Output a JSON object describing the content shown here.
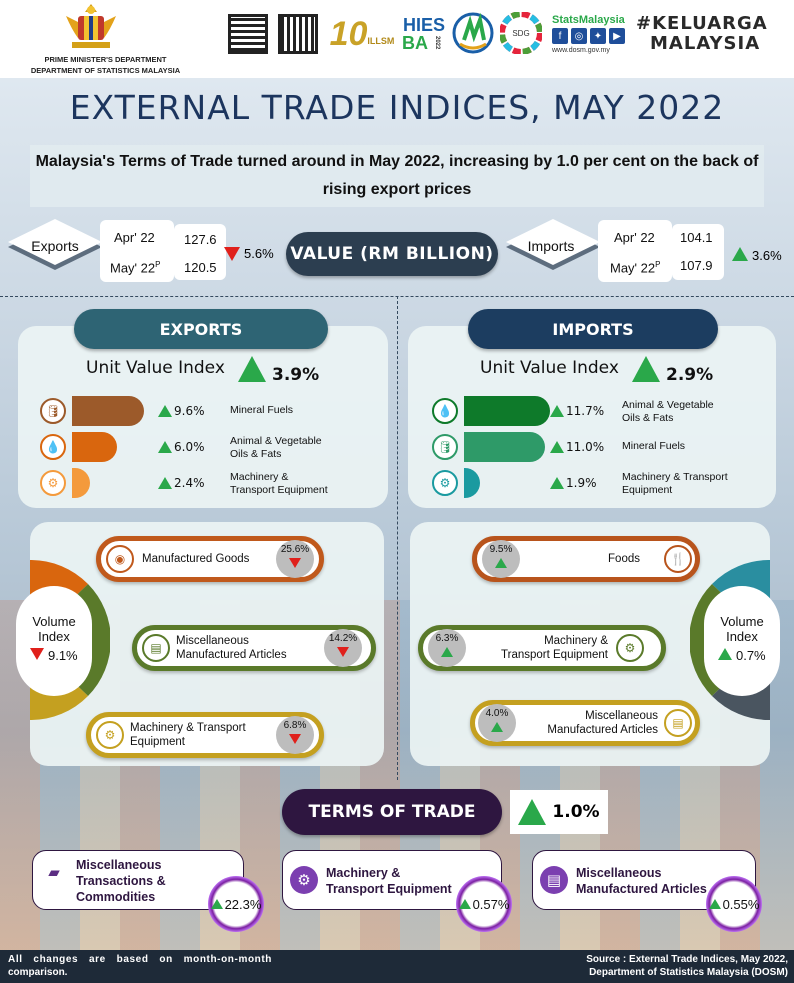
{
  "header": {
    "dept_line1": "PRIME MINISTER'S DEPARTMENT",
    "dept_line2": "DEPARTMENT OF STATISTICS MALAYSIA",
    "logo_10": "10",
    "logo_ilism": "ILLSM",
    "logo_hies1": "HIES",
    "logo_hies2": "BA",
    "logo_hies_year": "2022",
    "logo_sdg": "SDG",
    "stats_brand": "StatsMalaysia",
    "stats_url": "www.dosm.gov.my",
    "keluarga1": "#KELUARGA",
    "keluarga2": "MALAYSIA"
  },
  "title": "EXTERNAL TRADE INDICES, MAY 2022",
  "headline": "Malaysia's Terms of Trade turned around in May 2022, increasing by 1.0 per cent on the back of rising export prices",
  "value": {
    "label": "VALUE (RM BILLION)",
    "exports": {
      "name": "Exports",
      "period1": "Apr' 22",
      "period2": "May' 22",
      "period2_sup": "P",
      "v1": "127.6",
      "v2": "120.5",
      "change": "5.6%",
      "direction": "down"
    },
    "imports": {
      "name": "Imports",
      "period1": "Apr' 22",
      "period2": "May' 22",
      "period2_sup": "P",
      "v1": "104.1",
      "v2": "107.9",
      "change": "3.6%",
      "direction": "up"
    }
  },
  "exports": {
    "pill": "EXPORTS",
    "uvi_label": "Unit Value Index",
    "uvi_value": "3.9%",
    "uvi_items": [
      {
        "pct": "9.6%",
        "value": 9.6,
        "line1": "Mineral Fuels",
        "line2": "",
        "color": "#9c5a2a",
        "icon": "barrel-icon"
      },
      {
        "pct": "6.0%",
        "value": 6.0,
        "line1": "Animal & Vegetable",
        "line2": "Oils & Fats",
        "color": "#d9660e",
        "icon": "oil-drop-icon"
      },
      {
        "pct": "2.4%",
        "value": 2.4,
        "line1": "Machinery &",
        "line2": "Transport Equipment",
        "color": "#f49a3c",
        "icon": "gears-icon"
      }
    ],
    "volume_title1": "Volume",
    "volume_title2": "Index",
    "volume_value": "9.1%",
    "volume_items": [
      {
        "line1": "Manufactured Goods",
        "line2": "",
        "pct": "25.6%",
        "direction": "down",
        "color": "#c0591c"
      },
      {
        "line1": "Miscellaneous",
        "line2": "Manufactured Articles",
        "pct": "14.2%",
        "direction": "down",
        "color": "#5a7a2a"
      },
      {
        "line1": "Machinery & Transport",
        "line2": "Equipment",
        "pct": "6.8%",
        "direction": "down",
        "color": "#c4a020"
      }
    ]
  },
  "imports": {
    "pill": "IMPORTS",
    "uvi_label": "Unit Value Index",
    "uvi_value": "2.9%",
    "uvi_items": [
      {
        "pct": "11.7%",
        "value": 11.7,
        "line1": "Animal & Vegetable",
        "line2": "Oils & Fats",
        "color": "#0e7a2a",
        "icon": "oil-drop-icon"
      },
      {
        "pct": "11.0%",
        "value": 11.0,
        "line1": "Mineral Fuels",
        "line2": "",
        "color": "#2e9a68",
        "icon": "barrel-icon"
      },
      {
        "pct": "1.9%",
        "value": 1.9,
        "line1": "Machinery & Transport",
        "line2": "Equipment",
        "color": "#1a9aa0",
        "icon": "gears-icon"
      }
    ],
    "volume_title1": "Volume",
    "volume_title2": "Index",
    "volume_value": "0.7%",
    "volume_items": [
      {
        "line1": "Foods",
        "line2": "",
        "pct": "9.5%",
        "direction": "up",
        "color": "#b8541c"
      },
      {
        "line1": "Machinery &",
        "line2": "Transport Equipment",
        "pct": "6.3%",
        "direction": "up",
        "color": "#5a7a2a"
      },
      {
        "line1": "Miscellaneous",
        "line2": "Manufactured Articles",
        "pct": "4.0%",
        "direction": "up",
        "color": "#c4a020"
      }
    ]
  },
  "terms_of_trade": {
    "pill": "TERMS OF TRADE",
    "value": "1.0%",
    "items": [
      {
        "line1": "Miscellaneous",
        "line2": "Transactions &",
        "line3": "Commodities",
        "pct": "22.3%"
      },
      {
        "line1": "Machinery &",
        "line2": "Transport Equipment",
        "line3": "",
        "pct": "0.57%"
      },
      {
        "line1": "Miscellaneous",
        "line2": "Manufactured Articles",
        "line3": "",
        "pct": "0.55%"
      }
    ]
  },
  "footer": {
    "note1": "All changes are based on month-on-month",
    "note2": "comparison.",
    "source1": "Source : External Trade Indices, May 2022,",
    "source2": "Department of Statistics Malaysia (DOSM)"
  }
}
